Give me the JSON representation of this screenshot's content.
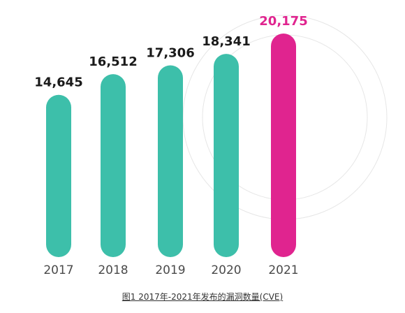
{
  "chart_data": {
    "type": "bar",
    "categories": [
      "2017",
      "2018",
      "2019",
      "2020",
      "2021"
    ],
    "values": [
      14645,
      16512,
      17306,
      18341,
      20175
    ],
    "value_labels": [
      "14,645",
      "16,512",
      "17,306",
      "18,341",
      "20,175"
    ],
    "highlight_index": 4,
    "grid": false,
    "ylim": [
      0,
      20175
    ]
  },
  "colors": {
    "bar": "#3dbfaa",
    "highlight": "#e0248f",
    "value_text": "#1a1a1a",
    "highlight_text": "#e0248f",
    "circle": "#e6e6e6"
  },
  "caption": "图1 2017年-2021年发布的漏洞数量(CVE)"
}
